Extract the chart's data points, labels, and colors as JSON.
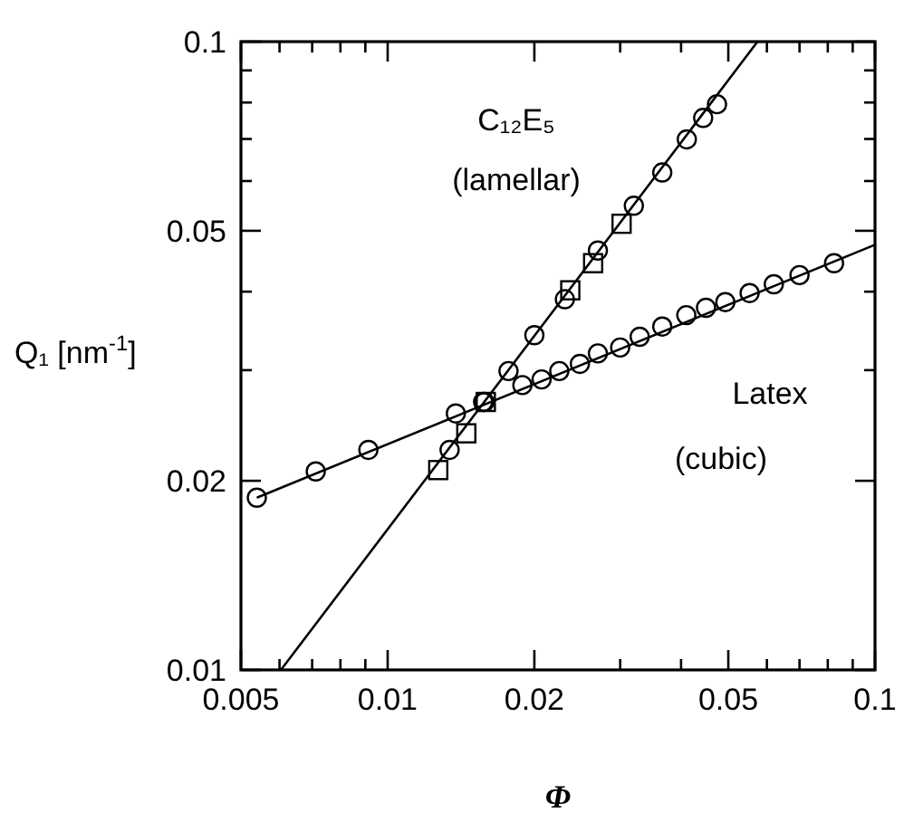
{
  "chart_data": {
    "type": "scatter",
    "xlabel": "Φ",
    "ylabel": "Q₁ [nm$^{-1}$]",
    "log": "xy",
    "xlim": [
      0.005,
      0.1
    ],
    "ylim": [
      0.01,
      0.1
    ],
    "xticks": [
      0.005,
      {
        "value": 0.006,
        "label": null
      },
      {
        "value": 0.007,
        "label": null
      },
      {
        "value": 0.008,
        "label": null
      },
      {
        "value": 0.009,
        "label": null
      },
      0.01,
      0.02,
      {
        "value": 0.03,
        "label": null
      },
      {
        "value": 0.04,
        "label": null
      },
      0.05,
      {
        "value": 0.06,
        "label": null
      },
      {
        "value": 0.07,
        "label": null
      },
      {
        "value": 0.08,
        "label": null
      },
      {
        "value": 0.09,
        "label": null
      },
      0.1
    ],
    "yticks": [
      0.01,
      0.02,
      {
        "value": 0.03,
        "label": null
      },
      {
        "value": 0.04,
        "label": null
      },
      0.05,
      {
        "value": 0.06,
        "label": null
      },
      {
        "value": 0.07,
        "label": null
      },
      {
        "value": 0.08,
        "label": null
      },
      {
        "value": 0.09,
        "label": null
      },
      0.1
    ],
    "grid": false,
    "series": [
      {
        "type": "line",
        "color": "#000000",
        "marker": "none",
        "x": [
          0.00604,
          0.0574
        ],
        "values": [
          0.01,
          0.1
        ]
      },
      {
        "type": "line",
        "color": "#000000",
        "marker": "none",
        "x": [
          0.00539,
          0.1
        ],
        "values": [
          0.0188,
          0.0475
        ]
      },
      {
        "color": "#000000",
        "marker": "circle",
        "x": [
          0.0134,
          0.0157,
          0.0177,
          0.02,
          0.0231,
          0.027,
          0.032,
          0.0366,
          0.0411,
          0.0444,
          0.0474
        ],
        "values": [
          0.0224,
          0.0267,
          0.0299,
          0.0341,
          0.0389,
          0.0465,
          0.0548,
          0.0619,
          0.0699,
          0.0756,
          0.0795
        ]
      },
      {
        "color": "#000000",
        "marker": "square",
        "x": [
          0.0127,
          0.0145,
          0.0159,
          0.0237,
          0.0264,
          0.0302
        ],
        "values": [
          0.0208,
          0.0238,
          0.0267,
          0.0402,
          0.0444,
          0.0513
        ]
      },
      {
        "color": "#000000",
        "marker": "circle",
        "x": [
          0.00539,
          0.00712,
          0.00913,
          0.0138,
          0.0158,
          0.0189,
          0.0207,
          0.0225,
          0.0248,
          0.027,
          0.03,
          0.0329,
          0.0366,
          0.041,
          0.045,
          0.0493,
          0.0553,
          0.062,
          0.07,
          0.0824
        ],
        "values": [
          0.0188,
          0.0207,
          0.0224,
          0.0256,
          0.0267,
          0.0284,
          0.029,
          0.0299,
          0.0307,
          0.0319,
          0.0326,
          0.0339,
          0.0352,
          0.0367,
          0.0377,
          0.0385,
          0.0398,
          0.0411,
          0.0425,
          0.0444
        ]
      }
    ],
    "annotations": [
      "C₁₂E₅",
      "(lamellar)",
      "Latex",
      "(cubic)"
    ]
  }
}
